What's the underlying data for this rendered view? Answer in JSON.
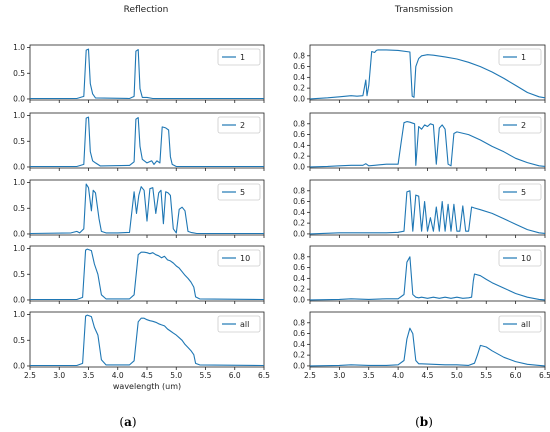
{
  "figure": {
    "panel_a_title": "Reflection",
    "panel_b_title": "Transmission",
    "caption_a_open": "(",
    "caption_a_letter": "a",
    "caption_a_close": ")",
    "caption_b_open": "(",
    "caption_b_letter": "b",
    "caption_b_close": ")",
    "line_color": "#1f77b4"
  },
  "chart_data": [
    {
      "type": "line",
      "panel": "a",
      "title": "Reflection",
      "xlabel": "wavelength (um)",
      "xlim": [
        2.5,
        6.5
      ],
      "ylim": [
        -0.02,
        1.05
      ],
      "xticks": [
        "2.5",
        "3.0",
        "3.5",
        "4.0",
        "4.5",
        "5.0",
        "5.5",
        "6.0",
        "6.5"
      ],
      "yticks": [
        "0.0",
        "0.5",
        "1.0"
      ],
      "subplots": [
        {
          "name": "1",
          "x": [
            2.5,
            3.3,
            3.42,
            3.46,
            3.5,
            3.53,
            3.57,
            3.62,
            4.2,
            4.28,
            4.31,
            4.35,
            4.38,
            4.42,
            4.5,
            4.6,
            6.5
          ],
          "y": [
            0.01,
            0.01,
            0.05,
            0.95,
            0.97,
            0.3,
            0.1,
            0.02,
            0.01,
            0.05,
            0.93,
            0.96,
            0.2,
            0.03,
            0.03,
            0.01,
            0.01
          ]
        },
        {
          "name": "2",
          "x": [
            2.5,
            3.3,
            3.42,
            3.46,
            3.5,
            3.53,
            3.57,
            3.62,
            3.7,
            4.2,
            4.28,
            4.31,
            4.35,
            4.38,
            4.42,
            4.5,
            4.58,
            4.62,
            4.67,
            4.72,
            4.76,
            4.82,
            4.87,
            4.9,
            4.93,
            5.0,
            6.5
          ],
          "y": [
            0.01,
            0.01,
            0.05,
            0.95,
            0.97,
            0.3,
            0.12,
            0.08,
            0.02,
            0.03,
            0.1,
            0.93,
            0.96,
            0.4,
            0.15,
            0.08,
            0.12,
            0.05,
            0.12,
            0.08,
            0.78,
            0.76,
            0.72,
            0.2,
            0.05,
            0.01,
            0.01
          ]
        },
        {
          "name": "5",
          "x": [
            2.5,
            3.2,
            3.3,
            3.35,
            3.42,
            3.46,
            3.5,
            3.55,
            3.58,
            3.62,
            3.68,
            3.72,
            3.8,
            4.0,
            4.2,
            4.28,
            4.32,
            4.36,
            4.4,
            4.45,
            4.5,
            4.55,
            4.6,
            4.65,
            4.7,
            4.74,
            4.78,
            4.82,
            4.86,
            4.9,
            4.95,
            5.0,
            5.05,
            5.1,
            5.15,
            5.2,
            5.25,
            5.3,
            5.35,
            6.5
          ],
          "y": [
            0.01,
            0.02,
            0.05,
            0.02,
            0.1,
            0.97,
            0.9,
            0.45,
            0.85,
            0.8,
            0.3,
            0.05,
            0.02,
            0.02,
            0.03,
            0.82,
            0.4,
            0.75,
            0.92,
            0.85,
            0.25,
            0.88,
            0.9,
            0.4,
            0.8,
            0.85,
            0.2,
            0.82,
            0.8,
            0.75,
            0.1,
            0.02,
            0.48,
            0.52,
            0.45,
            0.05,
            0.03,
            0.02,
            0.01,
            0.01
          ]
        },
        {
          "name": "10",
          "x": [
            2.5,
            3.3,
            3.4,
            3.45,
            3.48,
            3.55,
            3.6,
            3.66,
            3.72,
            3.8,
            4.2,
            4.28,
            4.35,
            4.4,
            4.45,
            4.5,
            4.55,
            4.6,
            4.65,
            4.7,
            4.75,
            4.8,
            4.85,
            4.9,
            4.95,
            5.0,
            5.05,
            5.1,
            5.15,
            5.2,
            5.25,
            5.3,
            5.33,
            5.4,
            6.5
          ],
          "y": [
            0.01,
            0.01,
            0.05,
            0.97,
            0.99,
            0.96,
            0.7,
            0.5,
            0.1,
            0.02,
            0.02,
            0.1,
            0.88,
            0.93,
            0.93,
            0.92,
            0.9,
            0.92,
            0.88,
            0.86,
            0.82,
            0.85,
            0.78,
            0.76,
            0.72,
            0.66,
            0.62,
            0.55,
            0.48,
            0.42,
            0.35,
            0.25,
            0.06,
            0.02,
            0.01
          ]
        },
        {
          "name": "all",
          "x": [
            2.5,
            3.3,
            3.4,
            3.45,
            3.48,
            3.55,
            3.6,
            3.66,
            3.72,
            3.8,
            4.2,
            4.28,
            4.35,
            4.4,
            4.45,
            4.5,
            4.55,
            4.6,
            4.65,
            4.7,
            4.75,
            4.8,
            4.85,
            4.9,
            4.95,
            5.0,
            5.05,
            5.1,
            5.15,
            5.2,
            5.25,
            5.3,
            5.33,
            5.4,
            6.5
          ],
          "y": [
            0.01,
            0.01,
            0.05,
            0.97,
            0.99,
            0.96,
            0.75,
            0.6,
            0.12,
            0.02,
            0.02,
            0.1,
            0.86,
            0.93,
            0.93,
            0.9,
            0.88,
            0.87,
            0.85,
            0.82,
            0.8,
            0.78,
            0.72,
            0.68,
            0.64,
            0.6,
            0.55,
            0.5,
            0.42,
            0.36,
            0.3,
            0.22,
            0.05,
            0.02,
            0.01
          ]
        }
      ]
    },
    {
      "type": "line",
      "panel": "b",
      "title": "Transmission",
      "xlabel": "",
      "xlim": [
        2.5,
        6.5
      ],
      "ylim": [
        -0.02,
        1.0
      ],
      "xticks": [
        "2.5",
        "3.0",
        "3.5",
        "4.0",
        "4.5",
        "5.0",
        "5.5",
        "6.0",
        "6.5"
      ],
      "yticks": [
        "0.0",
        "0.2",
        "0.4",
        "0.6",
        "0.8"
      ],
      "subplots": [
        {
          "name": "1",
          "x": [
            2.5,
            2.8,
            3.0,
            3.2,
            3.3,
            3.4,
            3.45,
            3.47,
            3.5,
            3.55,
            3.6,
            3.63,
            3.66,
            3.7,
            3.8,
            4.0,
            4.2,
            4.24,
            4.27,
            4.3,
            4.35,
            4.4,
            4.5,
            4.6,
            4.8,
            5.0,
            5.2,
            5.4,
            5.6,
            5.8,
            6.0,
            6.2,
            6.4,
            6.5
          ],
          "y": [
            0.0,
            0.02,
            0.04,
            0.06,
            0.05,
            0.06,
            0.35,
            0.06,
            0.25,
            0.88,
            0.86,
            0.9,
            0.91,
            0.91,
            0.91,
            0.9,
            0.87,
            0.05,
            0.03,
            0.6,
            0.75,
            0.8,
            0.82,
            0.81,
            0.78,
            0.74,
            0.68,
            0.6,
            0.5,
            0.38,
            0.25,
            0.12,
            0.04,
            0.02
          ]
        },
        {
          "name": "2",
          "x": [
            2.5,
            2.8,
            3.0,
            3.2,
            3.4,
            3.45,
            3.5,
            3.6,
            3.8,
            4.0,
            4.05,
            4.1,
            4.15,
            4.2,
            4.28,
            4.3,
            4.35,
            4.4,
            4.45,
            4.5,
            4.55,
            4.6,
            4.65,
            4.7,
            4.75,
            4.8,
            4.85,
            4.9,
            4.95,
            5.0,
            5.2,
            5.4,
            5.6,
            5.8,
            6.0,
            6.2,
            6.4,
            6.5
          ],
          "y": [
            0.0,
            0.01,
            0.02,
            0.03,
            0.03,
            0.06,
            0.02,
            0.03,
            0.05,
            0.05,
            0.45,
            0.82,
            0.84,
            0.83,
            0.8,
            0.03,
            0.75,
            0.7,
            0.78,
            0.75,
            0.8,
            0.78,
            0.05,
            0.72,
            0.78,
            0.7,
            0.05,
            0.02,
            0.62,
            0.65,
            0.6,
            0.5,
            0.38,
            0.28,
            0.16,
            0.08,
            0.02,
            0.01
          ]
        },
        {
          "name": "5",
          "x": [
            2.5,
            3.0,
            3.5,
            3.8,
            4.0,
            4.1,
            4.15,
            4.2,
            4.25,
            4.3,
            4.35,
            4.4,
            4.45,
            4.5,
            4.55,
            4.6,
            4.65,
            4.7,
            4.75,
            4.8,
            4.85,
            4.9,
            4.95,
            5.0,
            5.05,
            5.1,
            5.15,
            5.2,
            5.25,
            5.3,
            5.4,
            5.6,
            5.8,
            6.0,
            6.2,
            6.4,
            6.5
          ],
          "y": [
            0.0,
            0.02,
            0.02,
            0.02,
            0.03,
            0.05,
            0.78,
            0.8,
            0.05,
            0.72,
            0.7,
            0.05,
            0.6,
            0.05,
            0.3,
            0.05,
            0.5,
            0.05,
            0.6,
            0.05,
            0.55,
            0.05,
            0.55,
            0.05,
            0.05,
            0.52,
            0.05,
            0.05,
            0.5,
            0.48,
            0.45,
            0.38,
            0.28,
            0.18,
            0.08,
            0.02,
            0.01
          ]
        },
        {
          "name": "10",
          "x": [
            2.5,
            3.0,
            3.2,
            3.5,
            3.8,
            4.0,
            4.1,
            4.15,
            4.2,
            4.25,
            4.3,
            4.35,
            4.4,
            4.5,
            4.6,
            4.7,
            4.8,
            4.9,
            5.0,
            5.1,
            5.2,
            5.25,
            5.28,
            5.3,
            5.4,
            5.5,
            5.6,
            5.8,
            6.0,
            6.2,
            6.4,
            6.5
          ],
          "y": [
            0.0,
            0.01,
            0.02,
            0.01,
            0.02,
            0.02,
            0.1,
            0.7,
            0.8,
            0.1,
            0.05,
            0.04,
            0.05,
            0.03,
            0.05,
            0.03,
            0.05,
            0.03,
            0.05,
            0.03,
            0.04,
            0.05,
            0.35,
            0.48,
            0.45,
            0.38,
            0.32,
            0.22,
            0.12,
            0.05,
            0.01,
            0.0
          ]
        },
        {
          "name": "all",
          "x": [
            2.5,
            3.0,
            3.2,
            3.5,
            3.8,
            4.0,
            4.1,
            4.15,
            4.2,
            4.25,
            4.3,
            4.35,
            4.4,
            4.6,
            4.8,
            5.0,
            5.2,
            5.3,
            5.35,
            5.4,
            5.5,
            5.6,
            5.8,
            6.0,
            6.2,
            6.4,
            6.5
          ],
          "y": [
            0.0,
            0.01,
            0.02,
            0.01,
            0.01,
            0.02,
            0.1,
            0.5,
            0.7,
            0.6,
            0.1,
            0.04,
            0.04,
            0.03,
            0.02,
            0.02,
            0.01,
            0.05,
            0.2,
            0.38,
            0.35,
            0.28,
            0.16,
            0.08,
            0.03,
            0.01,
            0.0
          ]
        }
      ]
    }
  ]
}
